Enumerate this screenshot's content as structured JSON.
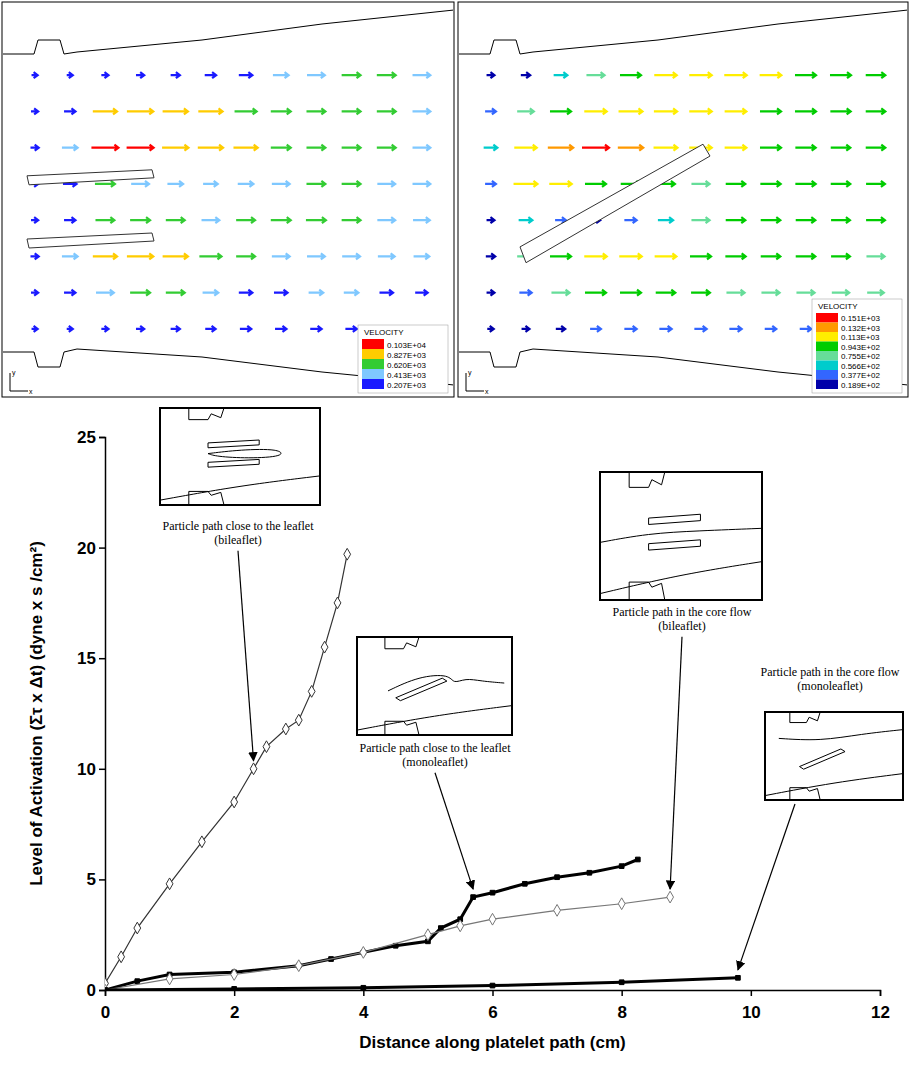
{
  "chart_data": [
    {
      "type": "vector_field",
      "x_label": "x",
      "y_label": "y",
      "field": [
        [
          50,
          50,
          100,
          150,
          200,
          300,
          400,
          500,
          600,
          650,
          650,
          600
        ],
        [
          100,
          300,
          900,
          1000,
          950,
          900,
          800,
          700,
          650,
          650,
          650,
          600
        ],
        [
          150,
          500,
          1030,
          1030,
          1000,
          950,
          900,
          700,
          650,
          650,
          650,
          600
        ],
        [
          100,
          400,
          700,
          600,
          500,
          450,
          500,
          600,
          650,
          650,
          600,
          600
        ],
        [
          100,
          300,
          650,
          700,
          650,
          600,
          650,
          700,
          700,
          650,
          600,
          550
        ],
        [
          150,
          500,
          900,
          1000,
          950,
          800,
          650,
          600,
          600,
          600,
          550,
          500
        ],
        [
          100,
          300,
          600,
          700,
          650,
          500,
          400,
          400,
          450,
          450,
          400,
          350
        ],
        [
          50,
          50,
          100,
          150,
          200,
          250,
          300,
          300,
          300,
          300,
          250,
          200
        ]
      ],
      "colorbar": {
        "title": "VELOCITY",
        "ticks": [
          {
            "value": 1030,
            "label": "0.103E+04"
          },
          {
            "value": 827,
            "label": "0.827E+03"
          },
          {
            "value": 620,
            "label": "0.620E+03"
          },
          {
            "value": 413,
            "label": "0.413E+03"
          },
          {
            "value": 207,
            "label": "0.207E+03"
          }
        ],
        "colors": [
          "#ff0000",
          "#ffcc00",
          "#33cc33",
          "#7fc8ff",
          "#1a1aff"
        ]
      }
    },
    {
      "type": "vector_field",
      "x_label": "x",
      "y_label": "y",
      "field": [
        [
          20,
          30,
          60,
          90,
          110,
          120,
          120,
          120,
          115,
          110,
          110,
          100
        ],
        [
          40,
          80,
          110,
          120,
          130,
          125,
          120,
          115,
          110,
          110,
          105,
          100
        ],
        [
          60,
          120,
          140,
          151,
          140,
          130,
          120,
          115,
          110,
          105,
          100,
          100
        ],
        [
          40,
          130,
          120,
          110,
          100,
          95,
          90,
          100,
          105,
          105,
          100,
          95
        ],
        [
          20,
          60,
          40,
          30,
          50,
          70,
          90,
          100,
          100,
          100,
          95,
          95
        ],
        [
          30,
          80,
          110,
          120,
          120,
          115,
          110,
          105,
          100,
          100,
          95,
          90
        ],
        [
          20,
          50,
          90,
          110,
          110,
          100,
          95,
          90,
          90,
          90,
          85,
          80
        ],
        [
          10,
          20,
          30,
          40,
          50,
          50,
          50,
          50,
          45,
          45,
          40,
          40
        ]
      ],
      "colorbar": {
        "title": "VELOCITY",
        "ticks": [
          {
            "value": 151,
            "label": "0.151E+03"
          },
          {
            "value": 132,
            "label": "0.132E+03"
          },
          {
            "value": 113,
            "label": "0.113E+03"
          },
          {
            "value": 94.3,
            "label": "0.943E+02"
          },
          {
            "value": 75.5,
            "label": "0.755E+02"
          },
          {
            "value": 56.6,
            "label": "0.566E+02"
          },
          {
            "value": 37.7,
            "label": "0.377E+02"
          },
          {
            "value": 18.9,
            "label": "0.189E+02"
          }
        ],
        "colors": [
          "#ff0000",
          "#ff9900",
          "#ffee00",
          "#00cc00",
          "#66dd99",
          "#00cccc",
          "#3366ff",
          "#0000aa"
        ]
      }
    },
    {
      "type": "line",
      "x_label": "Distance along platelet path (cm)",
      "y_label": "Level of Activation (Στ x Δt) (dyne x s /cm²)",
      "xlim": [
        0,
        12
      ],
      "xticks": [
        0,
        2,
        4,
        6,
        8,
        10,
        12
      ],
      "ylim": [
        0,
        25
      ],
      "yticks": [
        0,
        5,
        10,
        15,
        20,
        25
      ],
      "series": [
        {
          "name": "Particle path close to the leaflet (bileaflet)",
          "color": "#333333",
          "marker": "diamond-open",
          "line_style": "solid",
          "x": [
            0,
            0.25,
            0.5,
            1,
            1.5,
            2,
            2.3,
            2.5,
            2.8,
            3,
            3.2,
            3.4,
            3.6,
            3.75
          ],
          "values": [
            0.3,
            1.5,
            2.8,
            4.8,
            6.7,
            8.5,
            10,
            11,
            11.8,
            12.2,
            13.5,
            15.5,
            17.5,
            19.7
          ]
        },
        {
          "name": "Particle path close to the leaflet (monoleaflet)",
          "color": "#000000",
          "marker": "square",
          "line_style": "solid",
          "x": [
            0,
            0.5,
            1,
            2,
            3,
            3.5,
            4,
            4.5,
            5,
            5.2,
            5.5,
            5.7,
            6,
            6.5,
            7,
            7.5,
            8,
            8.25
          ],
          "values": [
            0,
            0.4,
            0.7,
            0.8,
            1.1,
            1.4,
            1.7,
            2.0,
            2.2,
            2.8,
            3.2,
            4.2,
            4.4,
            4.8,
            5.1,
            5.3,
            5.6,
            5.9
          ]
        },
        {
          "name": "Particle path in the core flow (bileaflet)",
          "color": "#777777",
          "marker": "diamond-open",
          "line_style": "solid",
          "x": [
            0,
            1,
            2,
            3,
            4,
            5,
            5.5,
            6,
            7,
            8,
            8.75
          ],
          "values": [
            0,
            0.5,
            0.7,
            1.1,
            1.7,
            2.5,
            2.9,
            3.2,
            3.6,
            3.9,
            4.2
          ]
        },
        {
          "name": "Particle path in the core flow (monoleaflet)",
          "color": "#000000",
          "marker": "square",
          "line_style": "solid",
          "x": [
            0,
            2,
            4,
            6,
            8,
            9.8
          ],
          "values": [
            0,
            0.05,
            0.1,
            0.2,
            0.35,
            0.55
          ]
        }
      ]
    }
  ]
}
